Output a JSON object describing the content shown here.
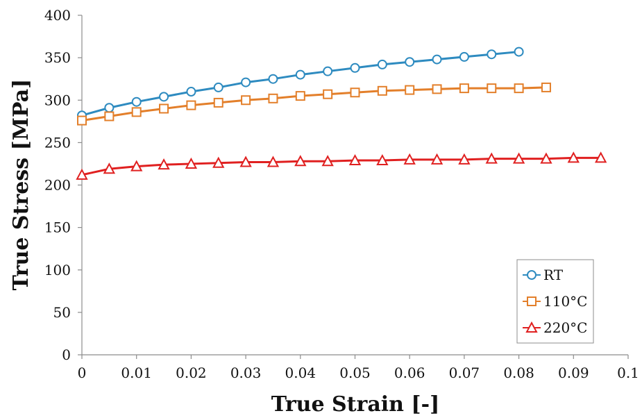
{
  "chart_data": {
    "type": "line",
    "xlabel": "True Strain [-]",
    "ylabel": "True Stress [MPa]",
    "xlim": [
      0,
      0.1
    ],
    "ylim": [
      0,
      400
    ],
    "x_ticks": [
      "0",
      "0.01",
      "0.02",
      "0.03",
      "0.04",
      "0.05",
      "0.06",
      "0.07",
      "0.08",
      "0.09",
      "0.1"
    ],
    "y_ticks": [
      "0",
      "50",
      "100",
      "150",
      "200",
      "250",
      "300",
      "350",
      "400"
    ],
    "grid": false,
    "legend_position": "bottom-right",
    "series": [
      {
        "name": "RT",
        "color": "#2E8BC0",
        "marker": "circle",
        "x": [
          0,
          0.005,
          0.01,
          0.015,
          0.02,
          0.025,
          0.03,
          0.035,
          0.04,
          0.045,
          0.05,
          0.055,
          0.06,
          0.065,
          0.07,
          0.075,
          0.08
        ],
        "y": [
          282,
          291,
          298,
          304,
          310,
          315,
          321,
          325,
          330,
          334,
          338,
          342,
          345,
          348,
          351,
          354,
          357
        ]
      },
      {
        "name": "110°C",
        "color": "#E37F2A",
        "marker": "square",
        "x": [
          0,
          0.005,
          0.01,
          0.015,
          0.02,
          0.025,
          0.03,
          0.035,
          0.04,
          0.045,
          0.05,
          0.055,
          0.06,
          0.065,
          0.07,
          0.075,
          0.08,
          0.085
        ],
        "y": [
          276,
          281,
          286,
          290,
          294,
          297,
          300,
          302,
          305,
          307,
          309,
          311,
          312,
          313,
          314,
          314,
          314,
          315
        ]
      },
      {
        "name": "220°C",
        "color": "#E02020",
        "marker": "triangle",
        "x": [
          0,
          0.005,
          0.01,
          0.015,
          0.02,
          0.025,
          0.03,
          0.035,
          0.04,
          0.045,
          0.05,
          0.055,
          0.06,
          0.065,
          0.07,
          0.075,
          0.08,
          0.085,
          0.09,
          0.095
        ],
        "y": [
          212,
          219,
          222,
          224,
          225,
          226,
          227,
          227,
          228,
          228,
          229,
          229,
          230,
          230,
          230,
          231,
          231,
          231,
          232,
          232
        ]
      }
    ]
  }
}
